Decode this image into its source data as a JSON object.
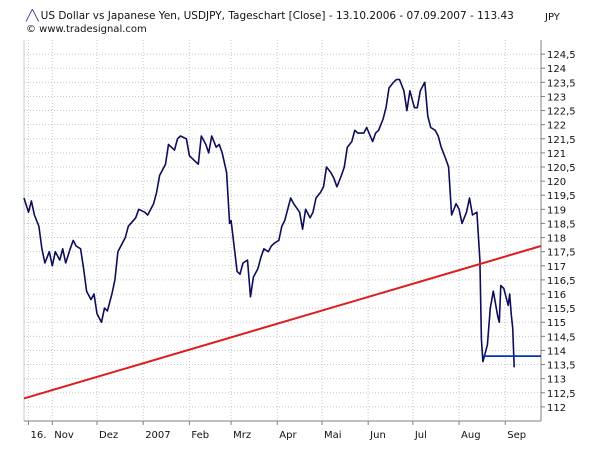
{
  "header": {
    "title": "US Dollar vs Japanese Yen, USDJPY, Tageschart [Close] - 13.10.2006 - 07.09.2007 - 113.43",
    "source": "© www.tradesignal.com",
    "currency_unit": "JPY"
  },
  "colors": {
    "price_line": "#0d0d5c",
    "trend_line": "#dd1e1e",
    "support_line": "#0033cc",
    "grid": "#c8c8c8",
    "axis": "#808080"
  },
  "chart_data": {
    "type": "line",
    "title": "US Dollar vs Japanese Yen, USDJPY, Tageschart [Close] - 13.10.2006 - 07.09.2007 - 113.43",
    "ylabel": "JPY",
    "ylim": [
      111.5,
      125
    ],
    "y_ticks": [
      "112",
      "112,5",
      "113",
      "113,5",
      "114",
      "114,5",
      "115",
      "115,5",
      "116",
      "116,5",
      "117",
      "117,5",
      "118",
      "118,5",
      "119",
      "119,5",
      "120",
      "120,5",
      "121",
      "121,5",
      "122",
      "122,5",
      "123",
      "123,5",
      "124",
      "124,5"
    ],
    "y_tick_values": [
      112,
      112.5,
      113,
      113.5,
      114,
      114.5,
      115,
      115.5,
      116,
      116.5,
      117,
      117.5,
      118,
      118.5,
      119,
      119.5,
      120,
      120.5,
      121,
      121.5,
      122,
      122.5,
      123,
      123.5,
      124,
      124.5
    ],
    "x_range": [
      "2006-10-13",
      "2007-09-25"
    ],
    "x_ticks": [
      {
        "label": "16.",
        "date": "2006-10-16"
      },
      {
        "label": "Nov",
        "date": "2006-11-01"
      },
      {
        "label": "Dez",
        "date": "2006-12-01"
      },
      {
        "label": "2007",
        "date": "2007-01-01"
      },
      {
        "label": "Feb",
        "date": "2007-02-01"
      },
      {
        "label": "Mrz",
        "date": "2007-03-01"
      },
      {
        "label": "Apr",
        "date": "2007-04-01"
      },
      {
        "label": "Mai",
        "date": "2007-05-01"
      },
      {
        "label": "Jun",
        "date": "2007-06-01"
      },
      {
        "label": "Jul",
        "date": "2007-07-01"
      },
      {
        "label": "Aug",
        "date": "2007-08-01"
      },
      {
        "label": "Sep",
        "date": "2007-09-01"
      }
    ],
    "grid": true,
    "series": [
      {
        "kind": "price",
        "points": [
          [
            "2006-10-13",
            119.4
          ],
          [
            "2006-10-16",
            118.9
          ],
          [
            "2006-10-18",
            119.3
          ],
          [
            "2006-10-20",
            118.8
          ],
          [
            "2006-10-23",
            118.4
          ],
          [
            "2006-10-25",
            117.6
          ],
          [
            "2006-10-27",
            117.1
          ],
          [
            "2006-10-30",
            117.5
          ],
          [
            "2006-11-01",
            117.0
          ],
          [
            "2006-11-03",
            117.5
          ],
          [
            "2006-11-06",
            117.2
          ],
          [
            "2006-11-08",
            117.6
          ],
          [
            "2006-11-10",
            117.1
          ],
          [
            "2006-11-13",
            117.6
          ],
          [
            "2006-11-15",
            117.9
          ],
          [
            "2006-11-17",
            117.7
          ],
          [
            "2006-11-20",
            117.6
          ],
          [
            "2006-11-22",
            116.9
          ],
          [
            "2006-11-24",
            116.1
          ],
          [
            "2006-11-27",
            115.8
          ],
          [
            "2006-11-29",
            116.0
          ],
          [
            "2006-12-01",
            115.3
          ],
          [
            "2006-12-04",
            115.0
          ],
          [
            "2006-12-06",
            115.5
          ],
          [
            "2006-12-08",
            115.4
          ],
          [
            "2006-12-11",
            116.0
          ],
          [
            "2006-12-13",
            116.5
          ],
          [
            "2006-12-15",
            117.5
          ],
          [
            "2006-12-18",
            117.8
          ],
          [
            "2006-12-20",
            118.0
          ],
          [
            "2006-12-22",
            118.4
          ],
          [
            "2006-12-27",
            118.7
          ],
          [
            "2006-12-29",
            119.0
          ],
          [
            "2007-01-02",
            118.9
          ],
          [
            "2007-01-04",
            118.8
          ],
          [
            "2007-01-08",
            119.2
          ],
          [
            "2007-01-10",
            119.6
          ],
          [
            "2007-01-12",
            120.2
          ],
          [
            "2007-01-16",
            120.6
          ],
          [
            "2007-01-18",
            121.3
          ],
          [
            "2007-01-22",
            121.1
          ],
          [
            "2007-01-24",
            121.5
          ],
          [
            "2007-01-26",
            121.6
          ],
          [
            "2007-01-30",
            121.5
          ],
          [
            "2007-02-01",
            120.9
          ],
          [
            "2007-02-05",
            120.7
          ],
          [
            "2007-02-07",
            120.6
          ],
          [
            "2007-02-09",
            121.6
          ],
          [
            "2007-02-12",
            121.3
          ],
          [
            "2007-02-14",
            121.0
          ],
          [
            "2007-02-16",
            121.6
          ],
          [
            "2007-02-19",
            121.2
          ],
          [
            "2007-02-21",
            121.3
          ],
          [
            "2007-02-23",
            121.0
          ],
          [
            "2007-02-26",
            120.3
          ],
          [
            "2007-02-28",
            118.5
          ],
          [
            "2007-03-01",
            118.6
          ],
          [
            "2007-03-05",
            116.8
          ],
          [
            "2007-03-07",
            116.7
          ],
          [
            "2007-03-09",
            117.1
          ],
          [
            "2007-03-12",
            117.2
          ],
          [
            "2007-03-14",
            115.9
          ],
          [
            "2007-03-16",
            116.6
          ],
          [
            "2007-03-19",
            116.9
          ],
          [
            "2007-03-21",
            117.3
          ],
          [
            "2007-03-23",
            117.6
          ],
          [
            "2007-03-26",
            117.5
          ],
          [
            "2007-03-28",
            117.7
          ],
          [
            "2007-03-30",
            117.8
          ],
          [
            "2007-04-02",
            117.9
          ],
          [
            "2007-04-04",
            118.4
          ],
          [
            "2007-04-06",
            118.6
          ],
          [
            "2007-04-10",
            119.4
          ],
          [
            "2007-04-12",
            119.2
          ],
          [
            "2007-04-16",
            118.9
          ],
          [
            "2007-04-18",
            118.3
          ],
          [
            "2007-04-20",
            119.0
          ],
          [
            "2007-04-23",
            118.7
          ],
          [
            "2007-04-25",
            118.9
          ],
          [
            "2007-04-27",
            119.4
          ],
          [
            "2007-04-30",
            119.6
          ],
          [
            "2007-05-02",
            119.8
          ],
          [
            "2007-05-04",
            120.5
          ],
          [
            "2007-05-07",
            120.3
          ],
          [
            "2007-05-09",
            120.1
          ],
          [
            "2007-05-11",
            119.8
          ],
          [
            "2007-05-14",
            120.2
          ],
          [
            "2007-05-16",
            120.5
          ],
          [
            "2007-05-18",
            121.2
          ],
          [
            "2007-05-21",
            121.4
          ],
          [
            "2007-05-23",
            121.8
          ],
          [
            "2007-05-25",
            121.7
          ],
          [
            "2007-05-29",
            121.7
          ],
          [
            "2007-05-31",
            121.9
          ],
          [
            "2007-06-04",
            121.4
          ],
          [
            "2007-06-06",
            121.7
          ],
          [
            "2007-06-08",
            121.8
          ],
          [
            "2007-06-11",
            122.2
          ],
          [
            "2007-06-13",
            122.6
          ],
          [
            "2007-06-15",
            123.3
          ],
          [
            "2007-06-18",
            123.5
          ],
          [
            "2007-06-20",
            123.6
          ],
          [
            "2007-06-22",
            123.6
          ],
          [
            "2007-06-25",
            123.2
          ],
          [
            "2007-06-27",
            122.5
          ],
          [
            "2007-06-29",
            123.2
          ],
          [
            "2007-07-02",
            122.6
          ],
          [
            "2007-07-04",
            122.6
          ],
          [
            "2007-07-06",
            123.2
          ],
          [
            "2007-07-09",
            123.5
          ],
          [
            "2007-07-11",
            122.3
          ],
          [
            "2007-07-13",
            121.9
          ],
          [
            "2007-07-16",
            121.8
          ],
          [
            "2007-07-18",
            121.6
          ],
          [
            "2007-07-20",
            121.2
          ],
          [
            "2007-07-23",
            120.8
          ],
          [
            "2007-07-25",
            120.5
          ],
          [
            "2007-07-27",
            118.8
          ],
          [
            "2007-07-30",
            119.2
          ],
          [
            "2007-08-01",
            119.0
          ],
          [
            "2007-08-03",
            118.5
          ],
          [
            "2007-08-06",
            118.9
          ],
          [
            "2007-08-08",
            119.4
          ],
          [
            "2007-08-10",
            118.8
          ],
          [
            "2007-08-13",
            118.9
          ],
          [
            "2007-08-15",
            117.2
          ],
          [
            "2007-08-16",
            114.4
          ],
          [
            "2007-08-17",
            113.6
          ],
          [
            "2007-08-20",
            114.2
          ],
          [
            "2007-08-22",
            115.5
          ],
          [
            "2007-08-24",
            116.1
          ],
          [
            "2007-08-27",
            115.2
          ],
          [
            "2007-08-28",
            115.0
          ],
          [
            "2007-08-29",
            116.3
          ],
          [
            "2007-08-31",
            116.2
          ],
          [
            "2007-09-03",
            115.6
          ],
          [
            "2007-09-04",
            116.0
          ],
          [
            "2007-09-05",
            115.3
          ],
          [
            "2007-09-06",
            114.8
          ],
          [
            "2007-09-07",
            113.4
          ]
        ]
      },
      {
        "kind": "trendline",
        "points": [
          [
            "2006-10-13",
            112.3
          ],
          [
            "2007-09-25",
            117.7
          ]
        ]
      },
      {
        "kind": "support",
        "points": [
          [
            "2007-08-17",
            113.8
          ],
          [
            "2007-09-25",
            113.8
          ]
        ]
      }
    ]
  }
}
